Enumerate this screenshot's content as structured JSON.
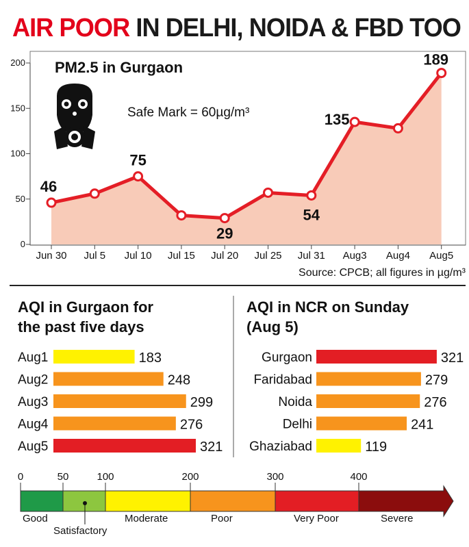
{
  "headline": {
    "highlight": "AIR POOR",
    "rest": " IN DELHI, NOIDA & FBD TOO"
  },
  "colors": {
    "accent_red": "#e3001b",
    "line": "#e41e26",
    "area": "#f8cbb8",
    "yellow": "#fff200",
    "orange": "#f7941d",
    "red": "#e31e24",
    "good": "#1f9a48",
    "satisfactory": "#8dc63f",
    "severe": "#8b0d0d"
  },
  "icons": [
    "gas-mask-icon"
  ],
  "chart_data": [
    {
      "type": "area",
      "title": "PM2.5 in Gurgaon",
      "annotation": "Safe Mark = 60µg/m³",
      "source": "Source: CPCB; all figures in µg/m³",
      "categories": [
        "Jun 30",
        "Jul 5",
        "Jul 10",
        "Jul 15",
        "Jul 20",
        "Jul 25",
        "Jul 31",
        "Aug3",
        "Aug4",
        "Aug5"
      ],
      "values": [
        46,
        56,
        75,
        32,
        29,
        57,
        54,
        135,
        128,
        189
      ],
      "labels": [
        "46",
        "",
        "75",
        "",
        "29",
        "",
        "54",
        "135",
        "",
        "189"
      ],
      "ylim": [
        0,
        200
      ],
      "yticks": [
        "0",
        "50",
        "100",
        "150",
        "200"
      ],
      "grid": false
    },
    {
      "type": "bar",
      "title": "AQI in Gurgaon for the past five days",
      "title_lines": [
        "AQI in Gurgaon for",
        "the past five days"
      ],
      "categories": [
        "Aug1",
        "Aug2",
        "Aug3",
        "Aug4",
        "Aug5"
      ],
      "values": [
        183,
        248,
        299,
        276,
        321
      ],
      "labels": [
        "183",
        "248",
        "299",
        "276",
        "321"
      ],
      "colors": [
        "#fff200",
        "#f7941d",
        "#f7941d",
        "#f7941d",
        "#e31e24"
      ]
    },
    {
      "type": "bar",
      "title": "AQI in NCR on Sunday (Aug 5)",
      "title_lines": [
        "AQI in NCR on Sunday",
        "(Aug 5)"
      ],
      "categories": [
        "Gurgaon",
        "Faridabad",
        "Noida",
        "Delhi",
        "Ghaziabad"
      ],
      "values": [
        321,
        279,
        276,
        241,
        119
      ],
      "labels": [
        "321",
        "279",
        "276",
        "241",
        "119"
      ],
      "colors": [
        "#e31e24",
        "#f7941d",
        "#f7941d",
        "#f7941d",
        "#fff200"
      ]
    },
    {
      "type": "scale",
      "ticks": [
        0,
        50,
        100,
        200,
        300,
        400
      ],
      "tick_labels": [
        "0",
        "50",
        "100",
        "200",
        "300",
        "400"
      ],
      "bands": [
        {
          "name": "Good",
          "from": 0,
          "to": 50,
          "color": "#1f9a48"
        },
        {
          "name": "Satisfactory",
          "from": 50,
          "to": 100,
          "color": "#8dc63f"
        },
        {
          "name": "Moderate",
          "from": 100,
          "to": 200,
          "color": "#fff200"
        },
        {
          "name": "Poor",
          "from": 200,
          "to": 300,
          "color": "#f7941d"
        },
        {
          "name": "Very Poor",
          "from": 300,
          "to": 400,
          "color": "#e31e24"
        },
        {
          "name": "Severe",
          "from": 400,
          "to": 500,
          "color": "#8b0d0d"
        }
      ]
    }
  ]
}
